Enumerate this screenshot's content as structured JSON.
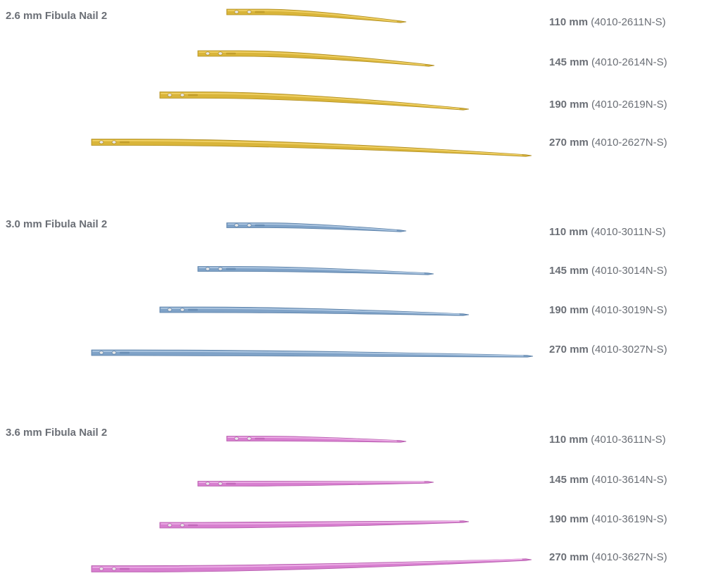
{
  "groups": [
    {
      "title": "2.6 mm Fibula Nail 2",
      "color": "#d9b53a",
      "highlight": "#f2d36a",
      "shade": "#b08d20",
      "items": [
        {
          "length": "110 mm",
          "part": "(4010-2611N-S)"
        },
        {
          "length": "145 mm",
          "part": "(4010-2614N-S)"
        },
        {
          "length": "190 mm",
          "part": "(4010-2619N-S)"
        },
        {
          "length": "270 mm",
          "part": "(4010-2627N-S)"
        }
      ]
    },
    {
      "title": "3.0 mm Fibula Nail 2",
      "color": "#7fa2c7",
      "highlight": "#b3cbe4",
      "shade": "#587ea6",
      "items": [
        {
          "length": "110 mm",
          "part": "(4010-3011N-S)"
        },
        {
          "length": "145 mm",
          "part": "(4010-3014N-S)"
        },
        {
          "length": "190 mm",
          "part": "(4010-3019N-S)"
        },
        {
          "length": "270 mm",
          "part": "(4010-3027N-S)"
        }
      ]
    },
    {
      "title": "3.6 mm Fibula Nail 2",
      "color": "#d77fcf",
      "highlight": "#eeb2e8",
      "shade": "#b45aab",
      "items": [
        {
          "length": "110 mm",
          "part": "(4010-3611N-S)"
        },
        {
          "length": "145 mm",
          "part": "(4010-3614N-S)"
        },
        {
          "length": "190 mm",
          "part": "(4010-3619N-S)"
        },
        {
          "length": "270 mm",
          "part": "(4010-3627N-S)"
        }
      ]
    }
  ]
}
